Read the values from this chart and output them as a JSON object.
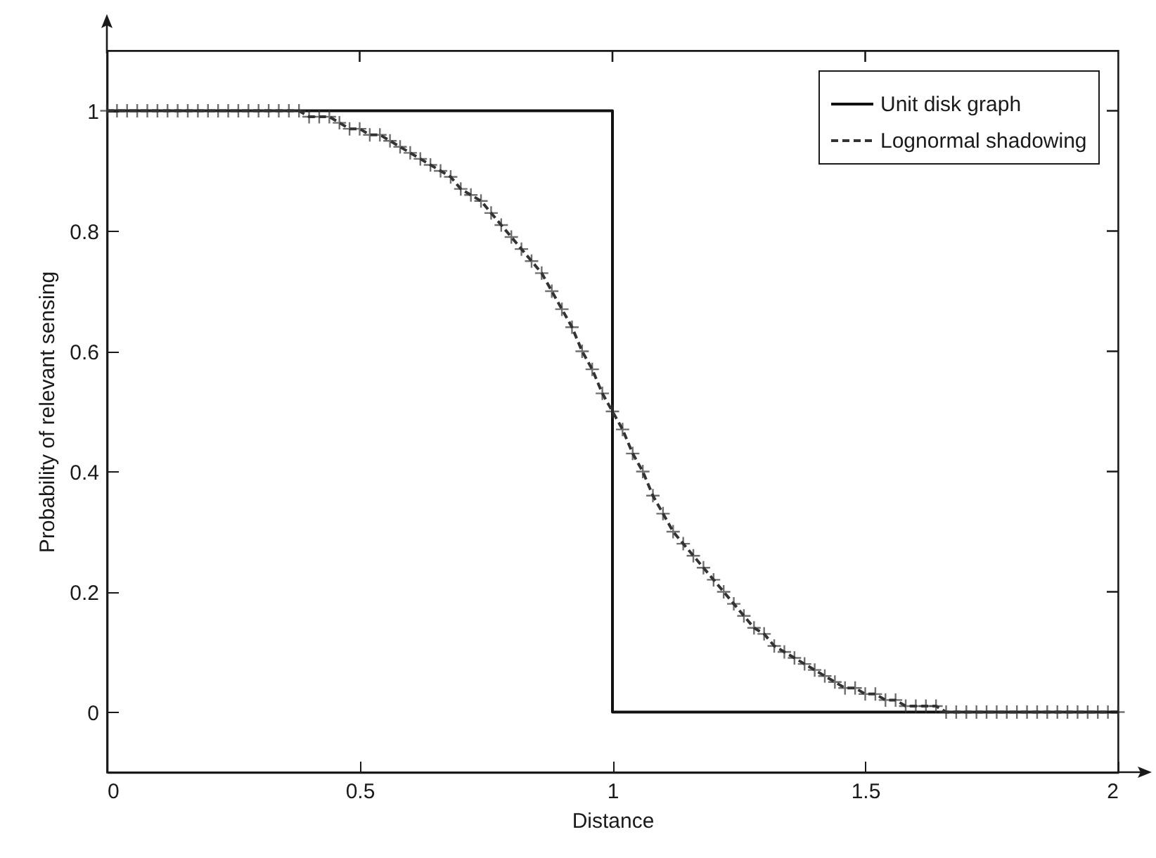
{
  "chart_data": {
    "type": "line",
    "xlabel": "Distance",
    "ylabel": "Probability of relevant sensing",
    "xlim": [
      0,
      2
    ],
    "xticks": [
      0,
      0.5,
      1,
      1.5,
      2
    ],
    "ylim": [
      -0.1,
      1.1
    ],
    "yticks": [
      0,
      0.2,
      0.4,
      0.6,
      0.8,
      1
    ],
    "legend": "top right",
    "grid": false,
    "series": [
      {
        "name": "Unit disk graph",
        "color": "#111111",
        "line_style": "solid",
        "marker": "none",
        "x": [
          0,
          1,
          1,
          2
        ],
        "values": [
          1,
          1,
          0,
          0
        ]
      },
      {
        "name": "Lognormal shadowing",
        "color": "#333333",
        "line_style": "dashed",
        "marker": "cross",
        "x": [
          0,
          0.02,
          0.04,
          0.06,
          0.08,
          0.1,
          0.12,
          0.14,
          0.16,
          0.18,
          0.2,
          0.22,
          0.24,
          0.26,
          0.28,
          0.3,
          0.32,
          0.34,
          0.36,
          0.38,
          0.4,
          0.42,
          0.44,
          0.46,
          0.48,
          0.5,
          0.52,
          0.54,
          0.56,
          0.58,
          0.6,
          0.62,
          0.64,
          0.66,
          0.68,
          0.7,
          0.72,
          0.74,
          0.76,
          0.78,
          0.8,
          0.82,
          0.84,
          0.86,
          0.88,
          0.9,
          0.92,
          0.94,
          0.96,
          0.98,
          1,
          1.02,
          1.04,
          1.06,
          1.08,
          1.1,
          1.12,
          1.14,
          1.16,
          1.18,
          1.2,
          1.22,
          1.24,
          1.26,
          1.28,
          1.3,
          1.32,
          1.34,
          1.36,
          1.38,
          1.4,
          1.42,
          1.44,
          1.46,
          1.48,
          1.5,
          1.52,
          1.54,
          1.56,
          1.58,
          1.6,
          1.62,
          1.64,
          1.66,
          1.68,
          1.7,
          1.72,
          1.74,
          1.76,
          1.78,
          1.8,
          1.82,
          1.84,
          1.86,
          1.88,
          1.9,
          1.92,
          1.94,
          1.96,
          1.98,
          2
        ],
        "values": [
          1,
          1,
          1,
          1,
          1,
          1,
          1,
          1,
          1,
          1,
          1,
          1,
          1,
          1,
          1,
          1,
          1,
          1,
          1,
          1,
          0.99,
          0.99,
          0.99,
          0.98,
          0.97,
          0.97,
          0.96,
          0.96,
          0.95,
          0.94,
          0.93,
          0.92,
          0.91,
          0.9,
          0.89,
          0.87,
          0.86,
          0.85,
          0.83,
          0.81,
          0.79,
          0.77,
          0.75,
          0.73,
          0.7,
          0.67,
          0.64,
          0.6,
          0.57,
          0.53,
          0.5,
          0.47,
          0.43,
          0.4,
          0.36,
          0.33,
          0.3,
          0.28,
          0.26,
          0.24,
          0.22,
          0.2,
          0.18,
          0.16,
          0.14,
          0.13,
          0.11,
          0.1,
          0.09,
          0.08,
          0.07,
          0.06,
          0.05,
          0.04,
          0.04,
          0.03,
          0.03,
          0.02,
          0.02,
          0.01,
          0.01,
          0.01,
          0.01,
          0,
          0,
          0,
          0,
          0,
          0,
          0,
          0,
          0,
          0,
          0,
          0,
          0,
          0,
          0,
          0,
          0,
          0
        ]
      }
    ]
  }
}
